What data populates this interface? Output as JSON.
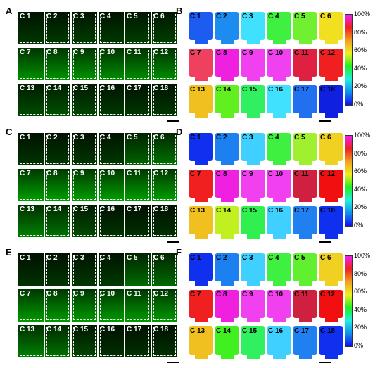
{
  "panels": [
    {
      "letter": "A",
      "type": "image",
      "greens": [
        0.05,
        0.06,
        0.07,
        0.06,
        0.08,
        0.08,
        0.35,
        0.36,
        0.36,
        0.34,
        0.34,
        0.34,
        0.12,
        0.14,
        0.1,
        0.06,
        0.05,
        0.05
      ]
    },
    {
      "letter": "B",
      "type": "map",
      "colors": [
        "#1c5cf0",
        "#1c8cf0",
        "#40e0ff",
        "#40f040",
        "#70f030",
        "#f0e020",
        "#f04060",
        "#f020e0",
        "#f040f0",
        "#f040f0",
        "#e02040",
        "#f02020",
        "#f0c020",
        "#60f020",
        "#30f060",
        "#40e0ff",
        "#2070f0",
        "#1020e0"
      ]
    },
    {
      "letter": "C",
      "type": "image",
      "greens": [
        0.04,
        0.05,
        0.05,
        0.06,
        0.2,
        0.25,
        0.4,
        0.4,
        0.4,
        0.4,
        0.4,
        0.4,
        0.3,
        0.25,
        0.12,
        0.04,
        0.03,
        0.03
      ]
    },
    {
      "letter": "D",
      "type": "map",
      "colors": [
        "#1030f0",
        "#1c80f0",
        "#40d0ff",
        "#40f040",
        "#a0f030",
        "#f0d020",
        "#f02020",
        "#f020e0",
        "#f040f0",
        "#f040f0",
        "#d02040",
        "#f01010",
        "#f0c020",
        "#c0f020",
        "#30f050",
        "#40d0ff",
        "#2080f0",
        "#1030f0"
      ]
    },
    {
      "letter": "E",
      "type": "image",
      "greens": [
        0.03,
        0.04,
        0.05,
        0.06,
        0.22,
        0.22,
        0.38,
        0.38,
        0.38,
        0.38,
        0.38,
        0.38,
        0.3,
        0.25,
        0.1,
        0.03,
        0.03,
        0.03
      ]
    },
    {
      "letter": "F",
      "type": "map",
      "colors": [
        "#1030f0",
        "#1c80f0",
        "#40d0ff",
        "#40f040",
        "#60f030",
        "#f0d020",
        "#f02020",
        "#f020e0",
        "#f040f0",
        "#f040f0",
        "#d02040",
        "#f01010",
        "#f0c020",
        "#40f020",
        "#30f060",
        "#40d0ff",
        "#2080f0",
        "#1030f0"
      ]
    }
  ],
  "cell_labels": [
    "C 1",
    "C 2",
    "C 3",
    "C 4",
    "C 5",
    "C 6",
    "C 7",
    "C 8",
    "C 9",
    "C 10",
    "C 11",
    "C 12",
    "C 13",
    "C 14",
    "C 15",
    "C 16",
    "C 17",
    "C 18"
  ],
  "colorbar": {
    "ticks": [
      "0%",
      "20%",
      "40%",
      "60%",
      "80%",
      "100%"
    ],
    "gradient": [
      "#1010f0",
      "#1090f0",
      "#20f0e0",
      "#20f020",
      "#f0f020",
      "#f0a020",
      "#f02020",
      "#f020f0"
    ]
  }
}
